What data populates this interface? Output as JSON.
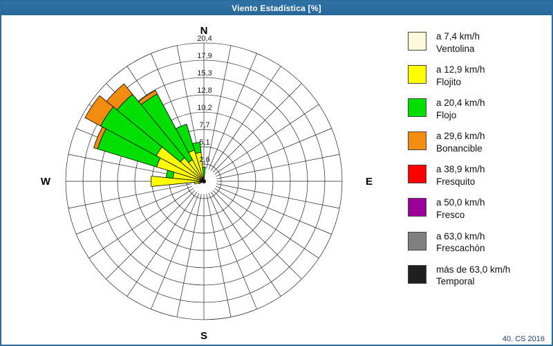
{
  "window": {
    "title": "Viento Estadística [%]",
    "footer": "40. CS 2016",
    "frame_color": "#2b6c9f"
  },
  "chart_data": {
    "type": "wind-rose",
    "units": "%",
    "sectors": 32,
    "sector_width_deg": 11.25,
    "rmax": 20.4,
    "ring_step": 2.55,
    "hub_radius": 1.9,
    "grid": "on",
    "ring_labels": [
      "2,6",
      "5,1",
      "7,7",
      "10,2",
      "12,8",
      "15,3",
      "17,9",
      "20,4"
    ],
    "ring_values": [
      2.6,
      5.1,
      7.7,
      10.2,
      12.8,
      15.3,
      17.9,
      20.4
    ],
    "compass": {
      "north": "N",
      "east": "E",
      "south": "S",
      "west": "W"
    },
    "series_order": [
      "ventolina",
      "flojito",
      "flojo",
      "bonancible"
    ],
    "colors": {
      "ventolina": "#fff8d8",
      "flojito": "#ffff00",
      "flojo": "#00df00",
      "bonancible": "#f28c0f",
      "fresquito": "#ff0000",
      "fresco": "#9a009a",
      "frescachon": "#808080",
      "temporal": "#1f1f1f"
    },
    "petals": [
      {
        "dir": "N",
        "deg": 0.0,
        "stack": [
          0.2,
          0.6,
          2.1,
          2.1
        ]
      },
      {
        "dir": "NbW",
        "deg": 348.75,
        "stack": [
          0.3,
          4.3,
          5.8,
          5.8
        ]
      },
      {
        "dir": "NNW",
        "deg": 337.5,
        "stack": [
          0.3,
          4.8,
          8.8,
          8.8
        ]
      },
      {
        "dir": "NWbN",
        "deg": 326.25,
        "stack": [
          0.3,
          3.6,
          14.6,
          15.2
        ]
      },
      {
        "dir": "NW",
        "deg": 315.0,
        "stack": [
          0.3,
          4.5,
          16.6,
          18.6
        ]
      },
      {
        "dir": "NWbW",
        "deg": 303.75,
        "stack": [
          0.3,
          8.0,
          17.3,
          19.9
        ]
      },
      {
        "dir": "WNW",
        "deg": 292.5,
        "stack": [
          0.3,
          7.3,
          16.4,
          17.0
        ]
      },
      {
        "dir": "WbN",
        "deg": 281.25,
        "stack": [
          0.2,
          4.6,
          5.6,
          5.6
        ]
      },
      {
        "dir": "W",
        "deg": 270.0,
        "stack": [
          0.2,
          7.8,
          7.8,
          7.8
        ]
      },
      {
        "dir": "WbS",
        "deg": 258.75,
        "stack": [
          0.1,
          1.4,
          1.4,
          1.4
        ]
      },
      {
        "dir": "WSW",
        "deg": 247.5,
        "stack": [
          0.1,
          0.8,
          0.8,
          0.8
        ]
      }
    ]
  },
  "legend": {
    "items": [
      {
        "color": "#fff8d8",
        "speed": "a 7,4 km/h",
        "name": "Ventolina"
      },
      {
        "color": "#ffff00",
        "speed": "a 12,9 km/h",
        "name": "Flojito"
      },
      {
        "color": "#00df00",
        "speed": "a 20,4 km/h",
        "name": "Flojo"
      },
      {
        "color": "#f28c0f",
        "speed": "a 29,6 km/h",
        "name": "Bonancible"
      },
      {
        "color": "#ff0000",
        "speed": "a 38,9 km/h",
        "name": "Fresquito"
      },
      {
        "color": "#9a009a",
        "speed": "a 50,0 km/h",
        "name": "Fresco"
      },
      {
        "color": "#808080",
        "speed": "a 63,0 km/h",
        "name": "Frescachón"
      },
      {
        "color": "#1f1f1f",
        "speed": "más de 63,0 km/h",
        "name": "Temporal"
      }
    ]
  }
}
